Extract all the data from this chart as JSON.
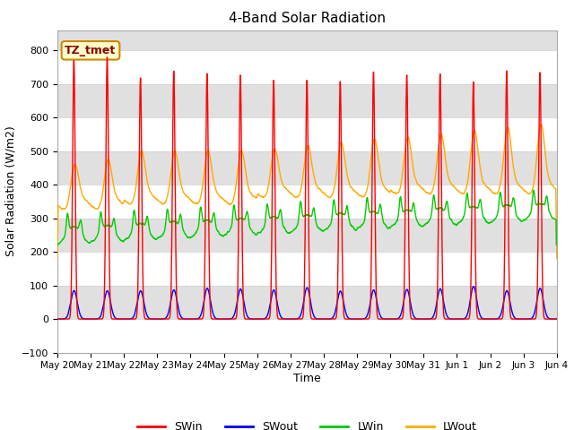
{
  "title": "4-Band Solar Radiation",
  "xlabel": "Time",
  "ylabel": "Solar Radiation (W/m2)",
  "ylim": [
    -100,
    860
  ],
  "yticks": [
    -100,
    0,
    100,
    200,
    300,
    400,
    500,
    600,
    700,
    800
  ],
  "background_color": "#ffffff",
  "plot_bg_color": "#e0e0e0",
  "grid_color": "#ffffff",
  "legend_label": "TZ_tmet",
  "series": {
    "SWin": {
      "color": "#ff0000",
      "label": "SWin"
    },
    "SWout": {
      "color": "#0000ff",
      "label": "SWout"
    },
    "LWin": {
      "color": "#00cc00",
      "label": "LWin"
    },
    "LWout": {
      "color": "#ffaa00",
      "label": "LWout"
    }
  },
  "n_days": 15,
  "points_per_day": 288
}
